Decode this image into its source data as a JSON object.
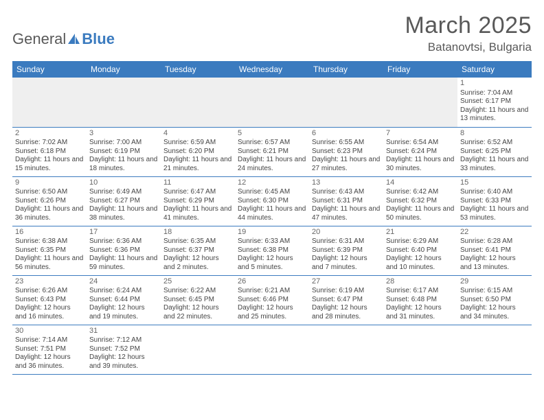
{
  "header": {
    "logo_general": "General",
    "logo_blue": "Blue",
    "month": "March 2025",
    "location": "Batanovtsi, Bulgaria"
  },
  "colors": {
    "header_bg": "#3b7bbf",
    "header_text": "#ffffff",
    "border": "#3b7bbf",
    "empty_bg": "#efefef",
    "text": "#444444",
    "title_text": "#595959"
  },
  "day_headers": [
    "Sunday",
    "Monday",
    "Tuesday",
    "Wednesday",
    "Thursday",
    "Friday",
    "Saturday"
  ],
  "weeks": [
    [
      null,
      null,
      null,
      null,
      null,
      null,
      {
        "n": "1",
        "sr": "7:04 AM",
        "ss": "6:17 PM",
        "dh": "11",
        "dm": "13"
      }
    ],
    [
      {
        "n": "2",
        "sr": "7:02 AM",
        "ss": "6:18 PM",
        "dh": "11",
        "dm": "15"
      },
      {
        "n": "3",
        "sr": "7:00 AM",
        "ss": "6:19 PM",
        "dh": "11",
        "dm": "18"
      },
      {
        "n": "4",
        "sr": "6:59 AM",
        "ss": "6:20 PM",
        "dh": "11",
        "dm": "21"
      },
      {
        "n": "5",
        "sr": "6:57 AM",
        "ss": "6:21 PM",
        "dh": "11",
        "dm": "24"
      },
      {
        "n": "6",
        "sr": "6:55 AM",
        "ss": "6:23 PM",
        "dh": "11",
        "dm": "27"
      },
      {
        "n": "7",
        "sr": "6:54 AM",
        "ss": "6:24 PM",
        "dh": "11",
        "dm": "30"
      },
      {
        "n": "8",
        "sr": "6:52 AM",
        "ss": "6:25 PM",
        "dh": "11",
        "dm": "33"
      }
    ],
    [
      {
        "n": "9",
        "sr": "6:50 AM",
        "ss": "6:26 PM",
        "dh": "11",
        "dm": "36"
      },
      {
        "n": "10",
        "sr": "6:49 AM",
        "ss": "6:27 PM",
        "dh": "11",
        "dm": "38"
      },
      {
        "n": "11",
        "sr": "6:47 AM",
        "ss": "6:29 PM",
        "dh": "11",
        "dm": "41"
      },
      {
        "n": "12",
        "sr": "6:45 AM",
        "ss": "6:30 PM",
        "dh": "11",
        "dm": "44"
      },
      {
        "n": "13",
        "sr": "6:43 AM",
        "ss": "6:31 PM",
        "dh": "11",
        "dm": "47"
      },
      {
        "n": "14",
        "sr": "6:42 AM",
        "ss": "6:32 PM",
        "dh": "11",
        "dm": "50"
      },
      {
        "n": "15",
        "sr": "6:40 AM",
        "ss": "6:33 PM",
        "dh": "11",
        "dm": "53"
      }
    ],
    [
      {
        "n": "16",
        "sr": "6:38 AM",
        "ss": "6:35 PM",
        "dh": "11",
        "dm": "56"
      },
      {
        "n": "17",
        "sr": "6:36 AM",
        "ss": "6:36 PM",
        "dh": "11",
        "dm": "59"
      },
      {
        "n": "18",
        "sr": "6:35 AM",
        "ss": "6:37 PM",
        "dh": "12",
        "dm": "2"
      },
      {
        "n": "19",
        "sr": "6:33 AM",
        "ss": "6:38 PM",
        "dh": "12",
        "dm": "5"
      },
      {
        "n": "20",
        "sr": "6:31 AM",
        "ss": "6:39 PM",
        "dh": "12",
        "dm": "7"
      },
      {
        "n": "21",
        "sr": "6:29 AM",
        "ss": "6:40 PM",
        "dh": "12",
        "dm": "10"
      },
      {
        "n": "22",
        "sr": "6:28 AM",
        "ss": "6:41 PM",
        "dh": "12",
        "dm": "13"
      }
    ],
    [
      {
        "n": "23",
        "sr": "6:26 AM",
        "ss": "6:43 PM",
        "dh": "12",
        "dm": "16"
      },
      {
        "n": "24",
        "sr": "6:24 AM",
        "ss": "6:44 PM",
        "dh": "12",
        "dm": "19"
      },
      {
        "n": "25",
        "sr": "6:22 AM",
        "ss": "6:45 PM",
        "dh": "12",
        "dm": "22"
      },
      {
        "n": "26",
        "sr": "6:21 AM",
        "ss": "6:46 PM",
        "dh": "12",
        "dm": "25"
      },
      {
        "n": "27",
        "sr": "6:19 AM",
        "ss": "6:47 PM",
        "dh": "12",
        "dm": "28"
      },
      {
        "n": "28",
        "sr": "6:17 AM",
        "ss": "6:48 PM",
        "dh": "12",
        "dm": "31"
      },
      {
        "n": "29",
        "sr": "6:15 AM",
        "ss": "6:50 PM",
        "dh": "12",
        "dm": "34"
      }
    ],
    [
      {
        "n": "30",
        "sr": "7:14 AM",
        "ss": "7:51 PM",
        "dh": "12",
        "dm": "36"
      },
      {
        "n": "31",
        "sr": "7:12 AM",
        "ss": "7:52 PM",
        "dh": "12",
        "dm": "39"
      },
      null,
      null,
      null,
      null,
      null
    ]
  ]
}
